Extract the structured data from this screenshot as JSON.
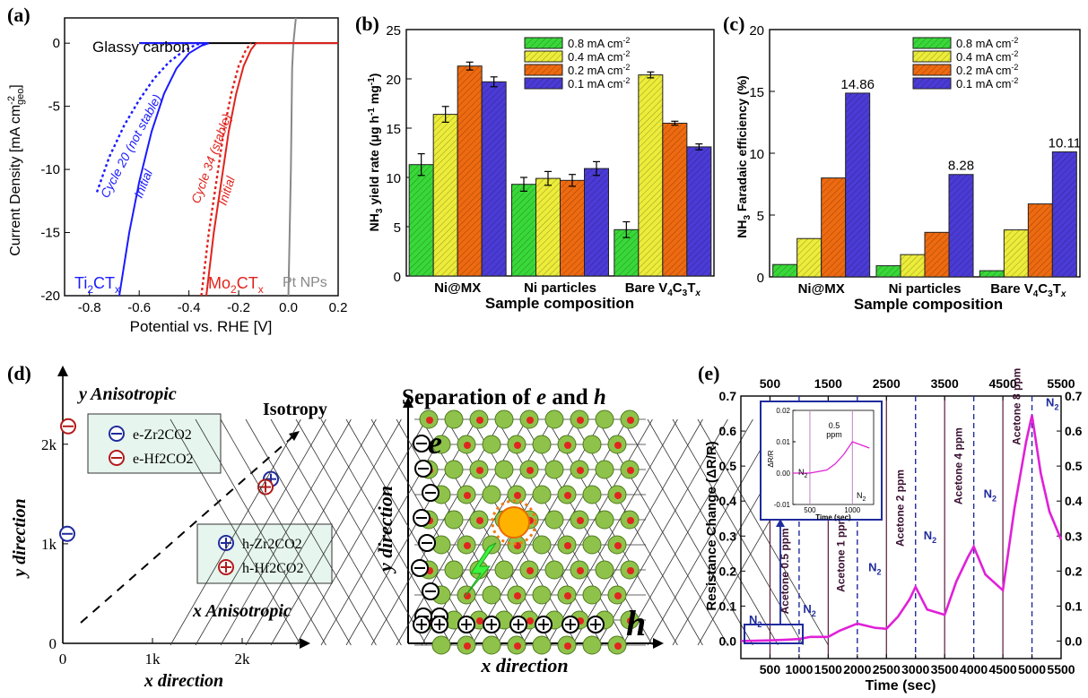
{
  "panels": {
    "a": {
      "label": "(a)",
      "ylabel": "Current Density [mA cm",
      "ylabel_sup": "-2",
      "ylabel_sub": "geo",
      "ylabel_end": "]",
      "xlabel": "Potential vs. RHE [V]",
      "annotations": {
        "glassy": "Glassy carbon",
        "ti_cycle": "Cycle 20 (not stable)",
        "ti_initial": "Initial",
        "mo_cycle": "Cycle 34 (stable)",
        "mo_initial": "Initial",
        "ti_main": "Ti",
        "ti_sub": "2",
        "ti_end": "CT",
        "ti_x": "x",
        "mo_main": "Mo",
        "mo_sub": "2",
        "mo_end": "CT",
        "mo_x": "x",
        "pt": "Pt NPs"
      },
      "colors": {
        "ti": "#1a1aff",
        "mo": "#e0231c",
        "pt": "#888888",
        "glassy": "#000000"
      }
    },
    "b": {
      "label": "(b)",
      "ylabel": "NH",
      "ylabel_sub": "3",
      "ylabel_rest": " yield rate (μg h",
      "ylabel_sup1": "-1",
      "ylabel_mg": " mg",
      "ylabel_sup2": "-1",
      "ylabel_end": ")",
      "xlabel": "Sample composition"
    },
    "c": {
      "label": "(c)",
      "ylabel": "NH",
      "ylabel_sub": "3",
      "ylabel_rest": " Faradaic efficiency (%)",
      "xlabel": "Sample composition"
    },
    "d": {
      "label": "(d)",
      "xlabel": "x direction",
      "ylabel": "y direction",
      "y_aniso": "y Anisotropic",
      "x_aniso": "x Anisotropic",
      "isotropy": "Isotropy",
      "legend_e": [
        "e-Zr2CO2",
        "e-Hf2CO2"
      ],
      "legend_h": [
        "h-Zr2CO2",
        "h-Hf2CO2"
      ],
      "xticks": [
        "0",
        "1k",
        "2k"
      ],
      "yticks": [
        "0",
        "1k",
        "2k"
      ],
      "colors": {
        "zr": "#1f2b9c",
        "hf": "#b31b1b"
      }
    },
    "lattice": {
      "title": "Separation of e and h",
      "title_pre": "Separation of ",
      "title_e": "e",
      "title_and": " and ",
      "title_h": "h",
      "xlabel": "x direction",
      "ylabel": "y direction",
      "e_label": "e",
      "h_label": "h"
    },
    "e": {
      "label": "(e)",
      "ylabel": "Resistance Change (ΔR/R)",
      "xlabel": "Time (sec)",
      "top_ticks": [
        "500",
        "1500",
        "2500",
        "3500",
        "4500",
        "5500"
      ],
      "events": [
        "N2",
        "Acetone 0.5 ppm",
        "N2",
        "Acetone 1 ppm",
        "N2",
        "Acetone 2 ppm",
        "N2",
        "Acetone 4 ppm",
        "N2",
        "Acetone 8 ppm",
        "N2"
      ],
      "inset": {
        "ylabel": "ΔR/R",
        "xlabel": "Time (sec)",
        "yticks": [
          "0.02",
          "0.01",
          "0.00",
          "-0.01"
        ],
        "xticks": [
          "500",
          "1000"
        ],
        "n2_left": "N2",
        "ppm": "0.5",
        "ppm2": "ppm",
        "n2_right": "N2"
      },
      "colors": {
        "line": "#e020d8",
        "frame": "#1f2b9c"
      }
    }
  },
  "chart_data": [
    {
      "type": "line",
      "panel": "a",
      "xlim": [
        -0.9,
        0.2
      ],
      "ylim": [
        -20,
        2
      ],
      "xticks": [
        -0.8,
        -0.6,
        -0.4,
        -0.2,
        0.0,
        0.2
      ],
      "yticks": [
        0,
        -5,
        -10,
        -15,
        -20
      ],
      "series": [
        {
          "name": "Glassy carbon",
          "x": [
            -0.6,
            0.2
          ],
          "y": [
            0,
            0
          ]
        },
        {
          "name": "Ti2CTx Initial",
          "x": [
            -0.68,
            -0.64,
            -0.6,
            -0.55,
            -0.5,
            -0.45,
            -0.4,
            -0.35,
            -0.32
          ],
          "y": [
            -20,
            -15,
            -11,
            -7,
            -4,
            -2,
            -0.8,
            -0.2,
            0
          ]
        },
        {
          "name": "Ti2CTx Cycle 20 (not stable)",
          "x": [
            -0.77,
            -0.72,
            -0.66,
            -0.6,
            -0.54,
            -0.48,
            -0.42,
            -0.37,
            -0.33
          ],
          "y": [
            -11.8,
            -9,
            -6.5,
            -4.5,
            -2.8,
            -1.5,
            -0.6,
            -0.1,
            0
          ]
        },
        {
          "name": "Mo2CTx Initial",
          "x": [
            -0.33,
            -0.3,
            -0.27,
            -0.24,
            -0.21,
            -0.18,
            -0.15,
            -0.13
          ],
          "y": [
            -20,
            -15,
            -11,
            -7,
            -4,
            -1.8,
            -0.5,
            0
          ]
        },
        {
          "name": "Mo2CTx Cycle 34 (stable)",
          "x": [
            -0.35,
            -0.32,
            -0.29,
            -0.26,
            -0.23,
            -0.2,
            -0.17,
            -0.15
          ],
          "y": [
            -20,
            -15,
            -11,
            -7,
            -4,
            -1.8,
            -0.5,
            0
          ]
        },
        {
          "name": "Pt NPs",
          "x": [
            0.0,
            0.01,
            0.015,
            0.02,
            0.03
          ],
          "y": [
            -20,
            -10,
            -2,
            0,
            2
          ]
        }
      ]
    },
    {
      "type": "bar",
      "panel": "b",
      "categories": [
        "Ni@MX",
        "Ni particles",
        "Bare V4C3Tx"
      ],
      "category_parts": [
        [
          "Ni@MX",
          "",
          ""
        ],
        [
          "Ni particles",
          "",
          ""
        ],
        [
          "Bare V",
          "4",
          "C",
          "3",
          "T",
          "x"
        ]
      ],
      "ylim": [
        0,
        25
      ],
      "yticks": [
        0,
        5,
        10,
        15,
        20,
        25
      ],
      "series": [
        {
          "name": "0.8 mA cm-2",
          "values": [
            11.3,
            9.3,
            4.7
          ],
          "errors": [
            1.1,
            0.7,
            0.8
          ],
          "color": "#39d839"
        },
        {
          "name": "0.4 mA cm-2",
          "values": [
            16.4,
            9.9,
            20.4
          ],
          "errors": [
            0.8,
            0.7,
            0.3
          ],
          "color": "#ecec3a"
        },
        {
          "name": "0.2 mA cm-2",
          "values": [
            21.3,
            9.7,
            15.5
          ],
          "errors": [
            0.4,
            0.6,
            0.2
          ],
          "color": "#ee6a10"
        },
        {
          "name": "0.1 mA cm-2",
          "values": [
            19.7,
            10.9,
            13.1
          ],
          "errors": [
            0.5,
            0.7,
            0.3
          ],
          "color": "#4b3bd6"
        }
      ]
    },
    {
      "type": "bar",
      "panel": "c",
      "categories": [
        "Ni@MX",
        "Ni particles",
        "Bare V4C3Tx"
      ],
      "ylim": [
        0,
        20
      ],
      "yticks": [
        0,
        5,
        10,
        15,
        20
      ],
      "series": [
        {
          "name": "0.8 mA cm-2",
          "values": [
            1.0,
            0.9,
            0.5
          ],
          "color": "#39d839"
        },
        {
          "name": "0.4 mA cm-2",
          "values": [
            3.1,
            1.8,
            3.8
          ],
          "color": "#ecec3a"
        },
        {
          "name": "0.2 mA cm-2",
          "values": [
            8.0,
            3.6,
            5.9
          ],
          "color": "#ee6a10"
        },
        {
          "name": "0.1 mA cm-2",
          "values": [
            14.86,
            8.28,
            10.11
          ],
          "color": "#4b3bd6"
        }
      ],
      "data_labels": [
        "14.86",
        "8.28",
        "10.11"
      ]
    },
    {
      "type": "scatter",
      "panel": "d",
      "xlim": [
        0,
        2600
      ],
      "ylim": [
        0,
        2700
      ],
      "series": [
        {
          "name": "e-Zr2CO2",
          "x": [
            50
          ],
          "y": [
            1100
          ]
        },
        {
          "name": "e-Hf2CO2",
          "x": [
            60
          ],
          "y": [
            2180
          ]
        },
        {
          "name": "h-Zr2CO2",
          "x": [
            2320
          ],
          "y": [
            1650
          ]
        },
        {
          "name": "h-Hf2CO2",
          "x": [
            2260
          ],
          "y": [
            1570
          ]
        }
      ]
    },
    {
      "type": "line",
      "panel": "e",
      "xlim": [
        0,
        5500
      ],
      "ylim": [
        -0.05,
        0.7
      ],
      "xticks": [
        500,
        1000,
        1500,
        2000,
        2500,
        3000,
        3500,
        4000,
        4500,
        5000,
        5500
      ],
      "yticks": [
        0.0,
        0.1,
        0.2,
        0.3,
        0.4,
        0.5,
        0.6,
        0.7
      ],
      "exposure_on": [
        1000,
        2000,
        3000,
        4000,
        5000
      ],
      "exposure_off": [
        500,
        1500,
        2500,
        3500,
        4500
      ],
      "x": [
        0,
        500,
        800,
        1000,
        1200,
        1500,
        1700,
        2000,
        2300,
        2500,
        2700,
        2900,
        3000,
        3200,
        3500,
        3700,
        3900,
        4000,
        4200,
        4500,
        4700,
        4900,
        5000,
        5150,
        5300,
        5500
      ],
      "y": [
        0.0,
        0.002,
        0.004,
        0.006,
        0.012,
        0.012,
        0.03,
        0.05,
        0.038,
        0.035,
        0.07,
        0.12,
        0.155,
        0.09,
        0.075,
        0.17,
        0.24,
        0.27,
        0.19,
        0.145,
        0.38,
        0.57,
        0.645,
        0.48,
        0.37,
        0.29
      ],
      "inset_x": [
        300,
        500,
        700,
        800,
        900,
        1000,
        1100,
        1200
      ],
      "inset_y": [
        0.0,
        0.0,
        0.001,
        0.003,
        0.006,
        0.01,
        0.009,
        0.008
      ]
    }
  ]
}
